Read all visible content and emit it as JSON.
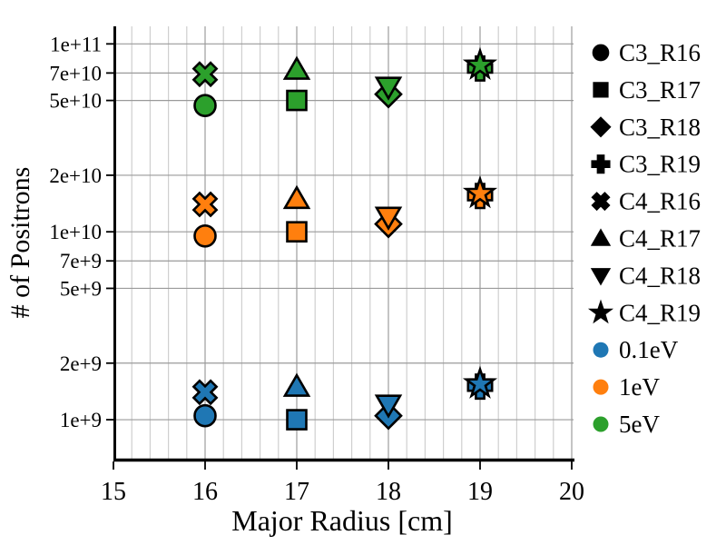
{
  "chart_data": {
    "type": "scatter",
    "title": "",
    "xlabel": "Major Radius [cm]",
    "ylabel": "# of Positrons",
    "xlim": [
      15,
      20
    ],
    "xticks": [
      15,
      16,
      17,
      18,
      19,
      20
    ],
    "x_minor_step": 0.2,
    "yscale": "log",
    "ylim": [
      620000000.0,
      124000000000.0
    ],
    "yticks": [
      {
        "value": 100000000000.0,
        "label": "1e+11"
      },
      {
        "value": 70000000000.0,
        "label": "7e+10"
      },
      {
        "value": 50000000000.0,
        "label": "5e+10"
      },
      {
        "value": 20000000000.0,
        "label": "2e+10"
      },
      {
        "value": 10000000000.0,
        "label": "1e+10"
      },
      {
        "value": 7000000000.0,
        "label": "7e+9"
      },
      {
        "value": 5000000000.0,
        "label": "5e+9"
      },
      {
        "value": 2000000000.0,
        "label": "2e+9"
      },
      {
        "value": 1000000000.0,
        "label": "1e+9"
      }
    ],
    "grid": true,
    "legend_position": "right-outside",
    "marker_outline": "#000000",
    "grid_color_h": "#9a9a9a",
    "grid_color_v_major": "#b0b0b0",
    "grid_color_v_minor": "#cfcfcf",
    "energies": [
      {
        "name": "0.1eV",
        "color": "#1f77b4"
      },
      {
        "name": "1eV",
        "color": "#ff7f0e"
      },
      {
        "name": "5eV",
        "color": "#2ca02c"
      }
    ],
    "series": [
      {
        "name": "C3_R16",
        "marker": "circle",
        "x": 16,
        "values": {
          "0.1eV": 1050000000.0,
          "1eV": 9500000000.0,
          "5eV": 47000000000.0
        }
      },
      {
        "name": "C3_R17",
        "marker": "square",
        "x": 17,
        "values": {
          "0.1eV": 1000000000.0,
          "1eV": 10000000000.0,
          "5eV": 50000000000.0
        }
      },
      {
        "name": "C3_R18",
        "marker": "diamond",
        "x": 18,
        "values": {
          "0.1eV": 1050000000.0,
          "1eV": 11000000000.0,
          "5eV": 54000000000.0
        }
      },
      {
        "name": "C3_R19",
        "marker": "plus",
        "x": 19,
        "values": {
          "0.1eV": 1500000000.0,
          "1eV": 15500000000.0,
          "5eV": 74000000000.0
        }
      },
      {
        "name": "C4_R16",
        "marker": "x",
        "x": 16,
        "values": {
          "0.1eV": 1400000000.0,
          "1eV": 14000000000.0,
          "5eV": 69000000000.0
        }
      },
      {
        "name": "C4_R17",
        "marker": "triangle-up",
        "x": 17,
        "values": {
          "0.1eV": 1500000000.0,
          "1eV": 15000000000.0,
          "5eV": 73000000000.0
        }
      },
      {
        "name": "C4_R18",
        "marker": "triangle-down",
        "x": 18,
        "values": {
          "0.1eV": 1200000000.0,
          "1eV": 12000000000.0,
          "5eV": 59000000000.0
        }
      },
      {
        "name": "C4_R19",
        "marker": "star",
        "x": 19,
        "values": {
          "0.1eV": 1550000000.0,
          "1eV": 16000000000.0,
          "5eV": 77000000000.0
        }
      }
    ]
  }
}
